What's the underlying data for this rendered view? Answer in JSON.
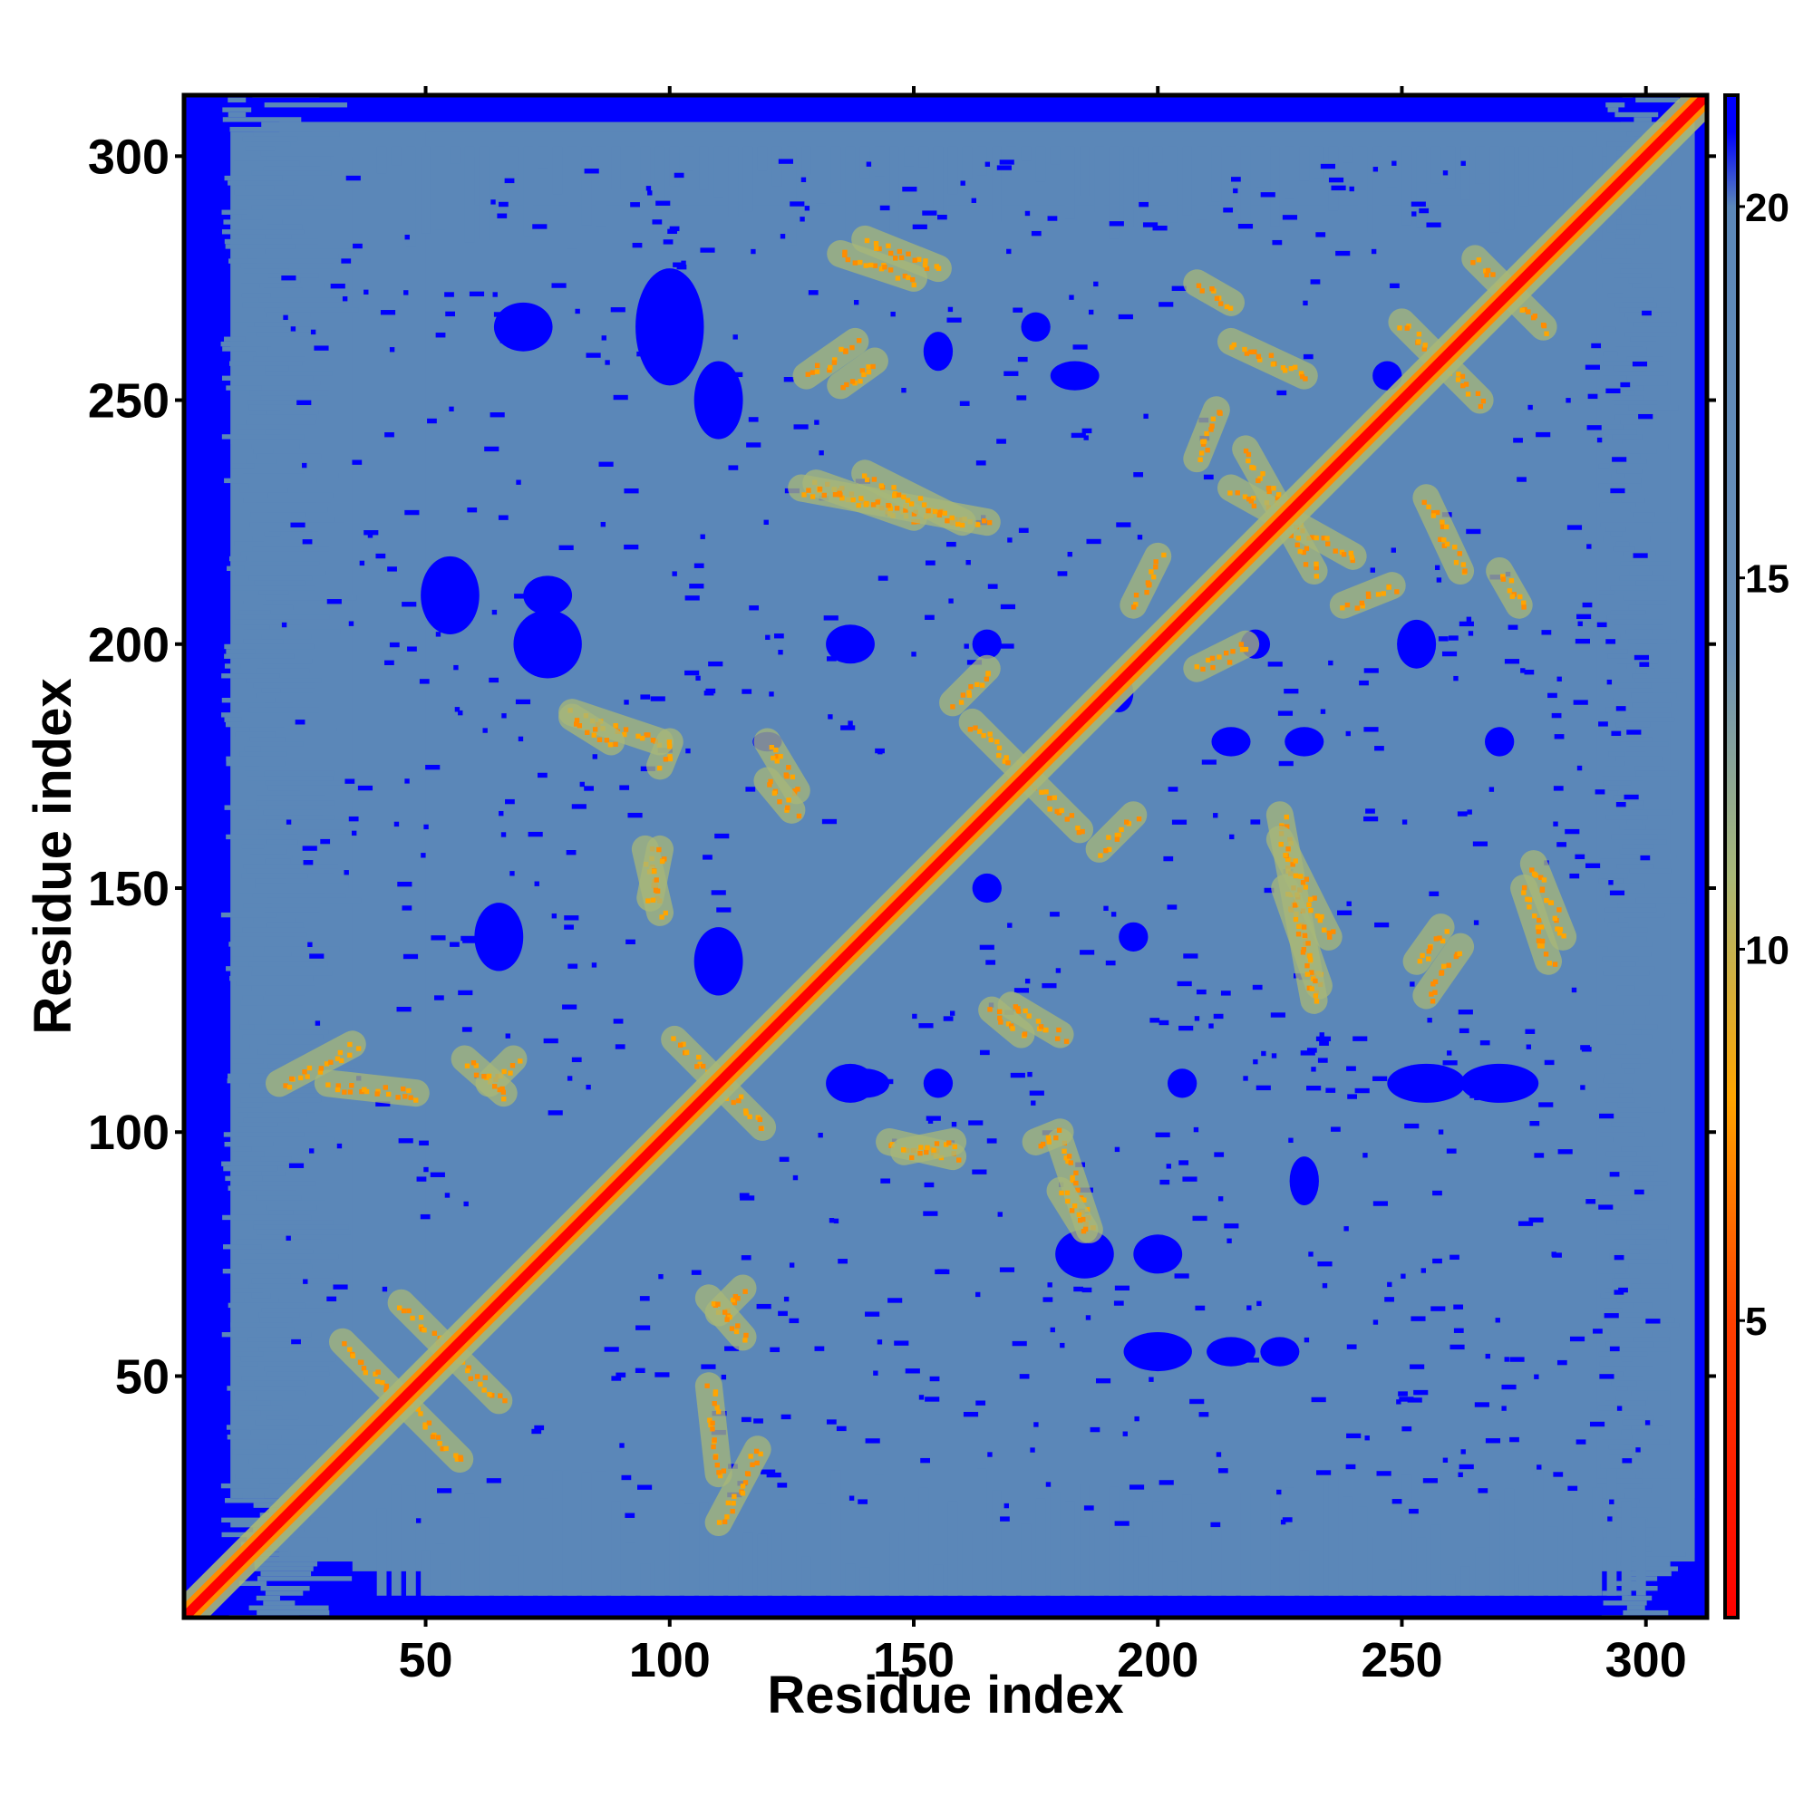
{
  "chart_data": {
    "type": "heatmap",
    "title": "",
    "xlabel": "Residue index",
    "ylabel": "Residue index",
    "n_residues": 312,
    "xlim": [
      1,
      312
    ],
    "ylim": [
      1,
      312
    ],
    "x_ticks": [
      50,
      100,
      150,
      200,
      250,
      300
    ],
    "y_ticks": [
      50,
      100,
      150,
      200,
      250,
      300
    ],
    "x_tick_labels": [
      "50",
      "100",
      "150",
      "200",
      "250",
      "300"
    ],
    "y_tick_labels": [
      "50",
      "100",
      "150",
      "200",
      "250",
      "300"
    ],
    "colorbar": {
      "range": [
        1,
        21.5
      ],
      "ticks": [
        5,
        10,
        15,
        20
      ],
      "tick_labels": [
        "5",
        "10",
        "15",
        "20"
      ],
      "stops": [
        {
          "value": 1,
          "color": "#ff0000"
        },
        {
          "value": 5,
          "color": "#ff4000"
        },
        {
          "value": 8,
          "color": "#ffa500"
        },
        {
          "value": 11,
          "color": "#a8b878"
        },
        {
          "value": 14,
          "color": "#6a90b8"
        },
        {
          "value": 20,
          "color": "#5b87b8"
        },
        {
          "value": 21,
          "color": "#0000ff"
        }
      ]
    },
    "background_color": "#0000ff",
    "packed_region_color": "#5b87b8",
    "diagonal_color": "#ff0000",
    "contact_features": [
      {
        "kind": "antiparallel",
        "center": [
          45,
          45
        ],
        "half_length": 12
      },
      {
        "kind": "antiparallel",
        "center": [
          55,
          55
        ],
        "half_length": 10
      },
      {
        "kind": "antiparallel",
        "center": [
          110,
          110
        ],
        "half_length": 9
      },
      {
        "kind": "antiparallel",
        "center": [
          173,
          173
        ],
        "half_length": 11
      },
      {
        "kind": "antiparallel",
        "center": [
          258,
          258
        ],
        "half_length": 8
      },
      {
        "kind": "antiparallel",
        "center": [
          272,
          272
        ],
        "half_length": 7
      },
      {
        "kind": "band",
        "from": [
          63,
          110
        ],
        "to": [
          68,
          115
        ]
      },
      {
        "kind": "band",
        "from": [
          108,
          66
        ],
        "to": [
          115,
          58
        ]
      },
      {
        "kind": "band",
        "from": [
          120,
          180
        ],
        "to": [
          126,
          170
        ]
      },
      {
        "kind": "band",
        "from": [
          166,
          125
        ],
        "to": [
          172,
          120
        ]
      },
      {
        "kind": "band",
        "from": [
          130,
          233
        ],
        "to": [
          150,
          226
        ]
      },
      {
        "kind": "band",
        "from": [
          225,
          165
        ],
        "to": [
          232,
          127
        ]
      },
      {
        "kind": "band",
        "from": [
          215,
          232
        ],
        "to": [
          240,
          218
        ]
      },
      {
        "kind": "band",
        "from": [
          255,
          230
        ],
        "to": [
          262,
          215
        ]
      },
      {
        "kind": "band",
        "from": [
          135,
          280
        ],
        "to": [
          150,
          275
        ]
      },
      {
        "kind": "band",
        "from": [
          277,
          155
        ],
        "to": [
          283,
          140
        ]
      },
      {
        "kind": "band",
        "from": [
          253,
          135
        ],
        "to": [
          258,
          142
        ]
      },
      {
        "kind": "band",
        "from": [
          145,
          98
        ],
        "to": [
          158,
          95
        ]
      },
      {
        "kind": "band",
        "from": [
          180,
          98
        ],
        "to": [
          186,
          80
        ]
      },
      {
        "kind": "band",
        "from": [
          98,
          158
        ],
        "to": [
          96,
          148
        ]
      },
      {
        "kind": "band",
        "from": [
          108,
          48
        ],
        "to": [
          110,
          30
        ]
      },
      {
        "kind": "band",
        "from": [
          20,
          110
        ],
        "to": [
          35,
          118
        ]
      },
      {
        "kind": "band",
        "from": [
          80,
          185
        ],
        "to": [
          88,
          180
        ]
      },
      {
        "kind": "band",
        "from": [
          100,
          180
        ],
        "to": [
          98,
          175
        ]
      },
      {
        "kind": "band",
        "from": [
          195,
          165
        ],
        "to": [
          188,
          158
        ]
      },
      {
        "kind": "band",
        "from": [
          208,
          195
        ],
        "to": [
          218,
          200
        ]
      },
      {
        "kind": "band",
        "from": [
          238,
          208
        ],
        "to": [
          248,
          212
        ]
      },
      {
        "kind": "band",
        "from": [
          270,
          215
        ],
        "to": [
          274,
          208
        ]
      },
      {
        "kind": "band",
        "from": [
          140,
          235
        ],
        "to": [
          160,
          225
        ]
      },
      {
        "kind": "band",
        "from": [
          128,
          255
        ],
        "to": [
          138,
          262
        ]
      }
    ]
  }
}
